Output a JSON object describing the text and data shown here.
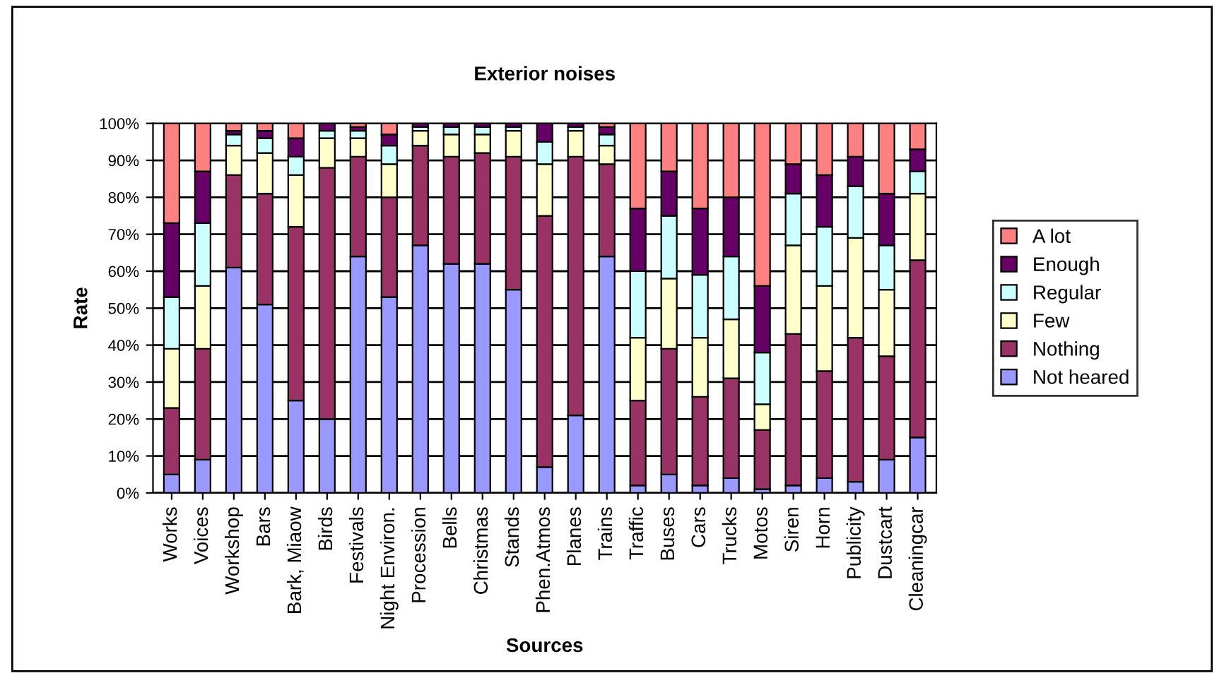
{
  "chart_data": {
    "type": "bar",
    "stacked": true,
    "title": "Exterior noises",
    "xlabel": "Sources",
    "ylabel": "Rate",
    "categories": [
      "Works",
      "Voices",
      "Workshop",
      "Bars",
      "Bark, Miaow",
      "Birds",
      "Festivals",
      "Night Environ.",
      "Procession",
      "Bells",
      "Christmas",
      "Stands",
      "Phen.Atmos",
      "Planes",
      "Trains",
      "Traffic",
      "Buses",
      "Cars",
      "Trucks",
      "Motos",
      "Siren",
      "Horn",
      "Publicity",
      "Dustcart",
      "Cleaningcar"
    ],
    "series": [
      {
        "name": "Not heared",
        "color": "#9999ff",
        "values": [
          5,
          9,
          61,
          51,
          25,
          20,
          64,
          53,
          67,
          62,
          62,
          55,
          7,
          21,
          64,
          2,
          5,
          2,
          4,
          1,
          2,
          4,
          3,
          9,
          15
        ]
      },
      {
        "name": "Nothing",
        "color": "#993366",
        "values": [
          18,
          30,
          25,
          30,
          47,
          68,
          27,
          27,
          27,
          29,
          30,
          36,
          68,
          70,
          25,
          23,
          34,
          24,
          27,
          16,
          41,
          29,
          39,
          28,
          48
        ]
      },
      {
        "name": "Few",
        "color": "#ffffcc",
        "values": [
          16,
          17,
          8,
          11,
          14,
          8,
          5,
          9,
          4,
          6,
          5,
          7,
          14,
          7,
          5,
          17,
          19,
          16,
          16,
          7,
          24,
          23,
          27,
          18,
          18
        ]
      },
      {
        "name": "Regular",
        "color": "#ccffff",
        "values": [
          14,
          17,
          3,
          4,
          5,
          2,
          2,
          5,
          1,
          2,
          2,
          1,
          6,
          1,
          3,
          18,
          17,
          17,
          17,
          14,
          14,
          16,
          14,
          12,
          6
        ]
      },
      {
        "name": "Enough",
        "color": "#660066",
        "values": [
          20,
          14,
          1,
          2,
          5,
          2,
          1,
          3,
          1,
          1,
          1,
          1,
          5,
          1,
          2,
          17,
          12,
          18,
          16,
          18,
          8,
          14,
          8,
          14,
          6
        ]
      },
      {
        "name": "A lot",
        "color": "#ff8080",
        "values": [
          27,
          13,
          2,
          2,
          4,
          0,
          1,
          3,
          0,
          0,
          0,
          0,
          0,
          0,
          1,
          23,
          13,
          23,
          20,
          44,
          11,
          14,
          9,
          19,
          7
        ]
      }
    ],
    "ylim": [
      0,
      100
    ],
    "yticks": [
      {
        "value": 0,
        "label": "0%"
      },
      {
        "value": 10,
        "label": "10%"
      },
      {
        "value": 20,
        "label": "20%"
      },
      {
        "value": 30,
        "label": "30%"
      },
      {
        "value": 40,
        "label": "40%"
      },
      {
        "value": 50,
        "label": "50%"
      },
      {
        "value": 60,
        "label": "60%"
      },
      {
        "value": 70,
        "label": "70%"
      },
      {
        "value": 80,
        "label": "80%"
      },
      {
        "value": 90,
        "label": "90%"
      },
      {
        "value": 100,
        "label": "100%"
      }
    ],
    "grid": "y",
    "legend": "right"
  }
}
